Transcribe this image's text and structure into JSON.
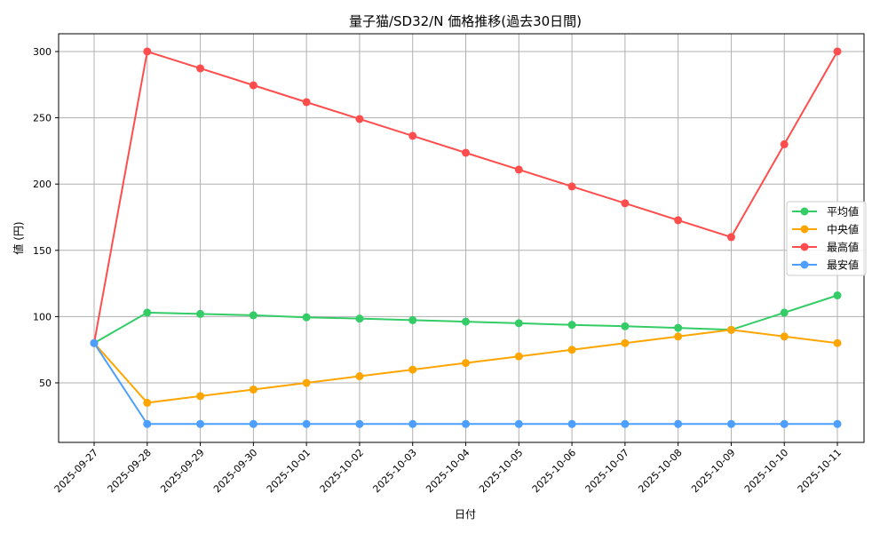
{
  "chart_data": {
    "type": "line",
    "title": "量子猫/SD32/N 価格推移(過去30日間)",
    "xlabel": "日付",
    "ylabel": "値 (円)",
    "categories": [
      "2025-09-27",
      "2025-09-28",
      "2025-09-29",
      "2025-09-30",
      "2025-10-01",
      "2025-10-02",
      "2025-10-03",
      "2025-10-04",
      "2025-10-05",
      "2025-10-06",
      "2025-10-07",
      "2025-10-08",
      "2025-10-09",
      "2025-10-10",
      "2025-10-11"
    ],
    "series": [
      {
        "name": "平均値",
        "color": "#33cc66",
        "values": [
          80,
          103,
          102,
          101,
          99.5,
          98.5,
          97.3,
          96.2,
          95,
          93.8,
          92.7,
          91.5,
          90,
          103,
          116
        ]
      },
      {
        "name": "中央値",
        "color": "#ffa500",
        "values": [
          80,
          35,
          40,
          45,
          50,
          55,
          60,
          65,
          70,
          75,
          80,
          85,
          90,
          85,
          80
        ]
      },
      {
        "name": "最高値",
        "color": "#ff4d4d",
        "values": [
          80,
          300,
          287.3,
          274.5,
          261.8,
          249.1,
          236.4,
          223.6,
          210.9,
          198.2,
          185.5,
          172.7,
          160,
          230,
          300
        ]
      },
      {
        "name": "最安値",
        "color": "#4d9fff",
        "values": [
          80,
          19,
          19,
          19,
          19,
          19,
          19,
          19,
          19,
          19,
          19,
          19,
          19,
          19,
          19
        ]
      }
    ],
    "yticks": [
      50,
      100,
      150,
      200,
      250,
      300
    ],
    "ylim": [
      5.1,
      313.4
    ],
    "grid": true,
    "legend_position": "center right",
    "markers": "circle"
  }
}
